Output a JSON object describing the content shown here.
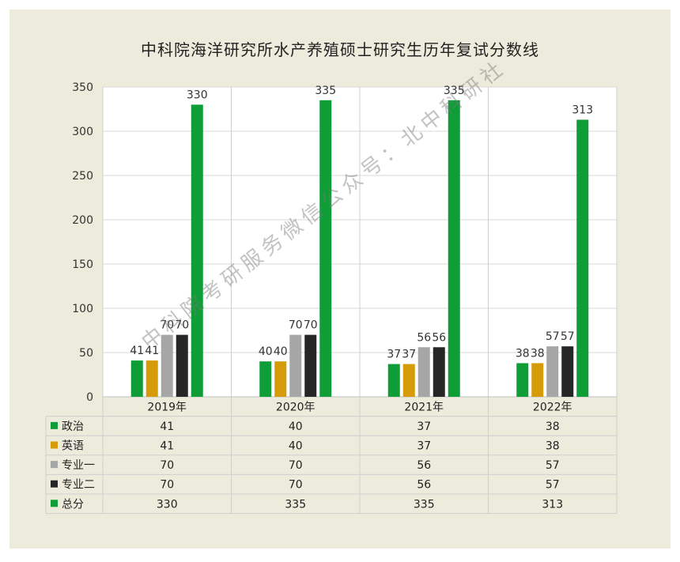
{
  "title": "中科院海洋研究所水产养殖硕士研究生历年复试分数线",
  "watermark": "中科院考研服务微信公众号：北中科研社",
  "colors": {
    "politics": "#0f9d38",
    "english": "#d59b08",
    "major1": "#a6a6a6",
    "major2": "#262626",
    "total": "#0f9d38",
    "frame": "#ecebdc"
  },
  "chart_data": {
    "type": "bar",
    "title": "中科院海洋研究所水产养殖硕士研究生历年复试分数线",
    "categories": [
      "2019年",
      "2020年",
      "2021年",
      "2022年"
    ],
    "series": [
      {
        "name": "政治",
        "values": [
          41,
          40,
          37,
          38
        ]
      },
      {
        "name": "英语",
        "values": [
          41,
          40,
          37,
          38
        ]
      },
      {
        "name": "专业一",
        "values": [
          70,
          70,
          56,
          57
        ]
      },
      {
        "name": "专业二",
        "values": [
          70,
          70,
          56,
          57
        ]
      },
      {
        "name": "总分",
        "values": [
          330,
          335,
          335,
          313
        ]
      }
    ],
    "ylim": [
      0,
      350
    ],
    "yticks": [
      0,
      50,
      100,
      150,
      200,
      250,
      300,
      350
    ],
    "grid": true,
    "data_table": true
  }
}
